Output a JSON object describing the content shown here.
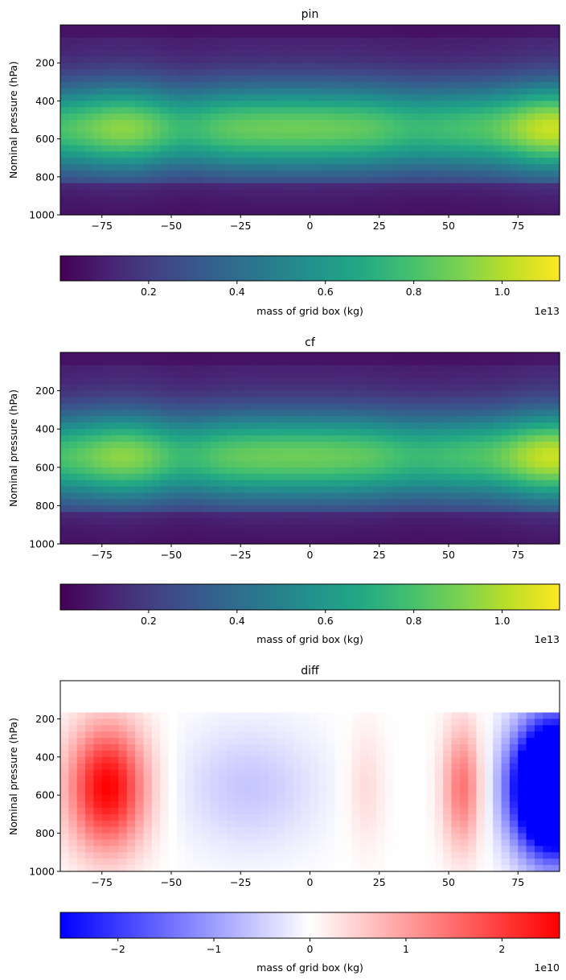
{
  "chart_data": [
    {
      "type": "heatmap",
      "title": "pin",
      "ylabel": "Nominal pressure (hPa)",
      "xlim": [
        -90,
        90
      ],
      "ylim": [
        1000,
        0
      ],
      "xticks": [
        "−75",
        "−50",
        "−25",
        "0",
        "25",
        "50",
        "75"
      ],
      "xtick_values": [
        -75,
        -50,
        -25,
        0,
        25,
        50,
        75
      ],
      "yticks": [
        "200",
        "400",
        "600",
        "800",
        "1000"
      ],
      "ytick_values": [
        200,
        400,
        600,
        800,
        1000
      ],
      "colormap": "viridis",
      "colorbar": {
        "label": "mass of grid box (kg)",
        "range": [
          0.0,
          1.13
        ],
        "ticks": [
          "0.2",
          "0.4",
          "0.6",
          "0.8",
          "1.0"
        ],
        "tick_values": [
          0.2,
          0.4,
          0.6,
          0.8,
          1.0
        ],
        "offset": "1e13",
        "orientation": "horizontal"
      },
      "description": "Mass peaks near 500-600 hPa across all latitudes, brightest near 85 and -68."
    },
    {
      "type": "heatmap",
      "title": "cf",
      "ylabel": "Nominal pressure (hPa)",
      "xlim": [
        -90,
        90
      ],
      "ylim": [
        1000,
        0
      ],
      "xticks": [
        "−75",
        "−50",
        "−25",
        "0",
        "25",
        "50",
        "75"
      ],
      "xtick_values": [
        -75,
        -50,
        -25,
        0,
        25,
        50,
        75
      ],
      "yticks": [
        "200",
        "400",
        "600",
        "800",
        "1000"
      ],
      "ytick_values": [
        200,
        400,
        600,
        800,
        1000
      ],
      "colormap": "viridis",
      "colorbar": {
        "label": "mass of grid box (kg)",
        "range": [
          0.0,
          1.13
        ],
        "ticks": [
          "0.2",
          "0.4",
          "0.6",
          "0.8",
          "1.0"
        ],
        "tick_values": [
          0.2,
          0.4,
          0.6,
          0.8,
          1.0
        ],
        "offset": "1e13",
        "orientation": "horizontal"
      }
    },
    {
      "type": "heatmap",
      "title": "diff",
      "ylabel": "Nominal pressure (hPa)",
      "xlim": [
        -90,
        90
      ],
      "ylim": [
        1000,
        0
      ],
      "xticks": [
        "−75",
        "−50",
        "−25",
        "0",
        "25",
        "50",
        "75"
      ],
      "xtick_values": [
        -75,
        -50,
        -25,
        0,
        25,
        50,
        75
      ],
      "yticks": [
        "200",
        "400",
        "600",
        "800",
        "1000"
      ],
      "ytick_values": [
        200,
        400,
        600,
        800,
        1000
      ],
      "colormap": "bwr",
      "colorbar": {
        "label": "mass of grid box (kg)",
        "range": [
          -2.6,
          2.6
        ],
        "ticks": [
          "−2",
          "−1",
          "0",
          "1",
          "2"
        ],
        "tick_values": [
          -2,
          -1,
          0,
          1,
          2
        ],
        "offset": "1e10",
        "orientation": "horizontal"
      }
    }
  ]
}
